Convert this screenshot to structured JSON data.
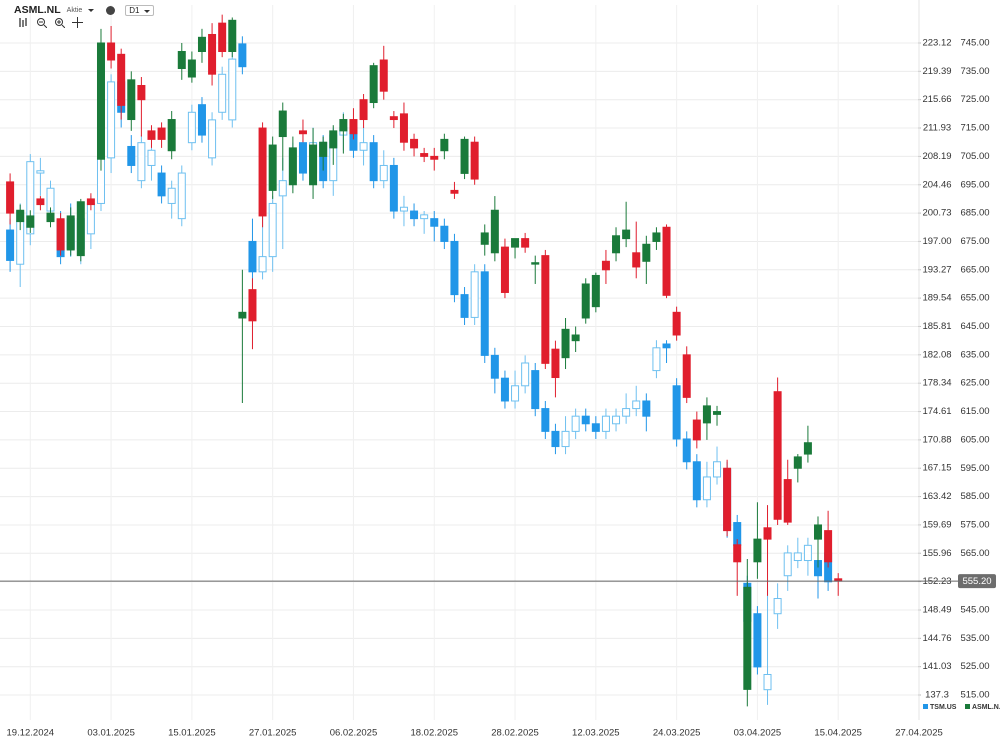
{
  "header": {
    "symbol": "ASML.NL",
    "kind": "Aktie",
    "interval": "D1"
  },
  "chart_data": {
    "type": "candlestick",
    "xlim": [
      -1,
      90
    ],
    "xticks": [
      {
        "value": 2,
        "label": "19.12.2024"
      },
      {
        "value": 10,
        "label": "03.01.2025"
      },
      {
        "value": 18,
        "label": "15.01.2025"
      },
      {
        "value": 26,
        "label": "27.01.2025"
      },
      {
        "value": 34,
        "label": "06.02.2025"
      },
      {
        "value": 42,
        "label": "18.02.2025"
      },
      {
        "value": 50,
        "label": "28.02.2025"
      },
      {
        "value": 58,
        "label": "12.03.2025"
      },
      {
        "value": 66,
        "label": "24.03.2025"
      },
      {
        "value": 74,
        "label": "03.04.2025"
      },
      {
        "value": 82,
        "label": "15.04.2025"
      },
      {
        "value": 90,
        "label": "27.04.2025"
      }
    ],
    "ylim": [
      506.2,
      758.4
    ],
    "yticks": [
      {
        "value": 515,
        "label": "515.00"
      },
      {
        "value": 525,
        "label": "525.00"
      },
      {
        "value": 535,
        "label": "535.00"
      },
      {
        "value": 545,
        "label": "545.00"
      },
      {
        "value": 555,
        "label": "555.00"
      },
      {
        "value": 565,
        "label": "565.00"
      },
      {
        "value": 575,
        "label": "575.00"
      },
      {
        "value": 585,
        "label": "585.00"
      },
      {
        "value": 595,
        "label": "595.00"
      },
      {
        "value": 605,
        "label": "605.00"
      },
      {
        "value": 615,
        "label": "615.00"
      },
      {
        "value": 625,
        "label": "625.00"
      },
      {
        "value": 635,
        "label": "635.00"
      },
      {
        "value": 645,
        "label": "645.00"
      },
      {
        "value": 655,
        "label": "655.00"
      },
      {
        "value": 665,
        "label": "665.00"
      },
      {
        "value": 675,
        "label": "675.00"
      },
      {
        "value": 685,
        "label": "685.00"
      },
      {
        "value": 695,
        "label": "695.00"
      },
      {
        "value": 705,
        "label": "705.00"
      },
      {
        "value": 715,
        "label": "715.00"
      },
      {
        "value": 725,
        "label": "725.00"
      },
      {
        "value": 735,
        "label": "735.00"
      },
      {
        "value": 745,
        "label": "745.00"
      }
    ],
    "y2lim": [
      134.01,
      228.12
    ],
    "y2ticks": [
      137.3,
      141.03,
      144.76,
      148.49,
      152.23,
      155.96,
      159.69,
      163.42,
      167.15,
      170.88,
      174.61,
      178.34,
      182.08,
      185.81,
      189.54,
      193.27,
      {
        "value": 197,
        "label": "197.00"
      },
      200.73,
      204.46,
      208.19,
      211.93,
      215.66,
      219.39,
      223.12
    ],
    "grid": true,
    "last_price": {
      "value": 555.2,
      "label": "555.20"
    },
    "series": [
      {
        "name": "TSM.US",
        "axis": "y2",
        "color": "#2196e8",
        "up_color": "#6ec0f0",
        "down_color": "#2196e8",
        "hollow_up": true,
        "ohlc": [
          [
            198.5,
            200,
            193,
            194.5
          ],
          [
            194,
            202,
            191,
            201
          ],
          [
            198,
            208.5,
            196.5,
            207.5
          ],
          [
            206,
            208,
            203,
            206.3
          ],
          [
            201,
            205,
            199,
            204
          ],
          [
            199.8,
            201,
            194,
            195
          ],
          [
            200,
            202,
            195,
            196
          ],
          [
            196,
            201,
            194,
            200
          ],
          [
            198,
            203,
            196,
            202
          ],
          [
            202,
            209,
            201,
            208
          ],
          [
            208,
            219,
            206,
            218
          ],
          [
            218,
            219,
            212,
            214
          ],
          [
            209.5,
            211,
            206,
            207
          ],
          [
            205,
            211,
            204,
            210
          ],
          [
            207,
            210,
            205,
            209
          ],
          [
            206,
            207,
            202,
            203
          ],
          [
            202,
            205,
            200,
            204
          ],
          [
            200,
            207,
            199,
            206
          ],
          [
            210,
            215,
            209,
            214
          ],
          [
            215,
            216,
            210,
            211
          ],
          [
            208,
            214,
            207,
            213
          ],
          [
            214,
            220,
            213,
            219
          ],
          [
            213,
            222,
            212,
            221
          ],
          [
            223,
            224,
            219,
            220
          ],
          [
            197,
            200,
            191,
            193
          ],
          [
            193,
            201,
            192,
            195
          ],
          [
            195,
            203,
            193,
            202
          ],
          [
            203,
            208,
            196,
            205
          ],
          [
            205,
            210,
            204,
            209
          ],
          [
            210,
            211,
            205,
            206
          ],
          [
            206,
            212,
            205,
            210
          ],
          [
            210,
            211,
            204,
            205
          ],
          [
            205,
            212,
            203,
            211
          ],
          [
            211,
            214,
            209,
            212
          ],
          [
            212,
            213,
            208,
            209
          ],
          [
            209,
            212,
            207,
            210
          ],
          [
            210,
            211,
            204,
            205
          ],
          [
            205,
            209,
            204,
            207
          ],
          [
            207,
            208,
            200,
            201
          ],
          [
            201,
            203,
            199,
            201.5
          ],
          [
            201,
            202,
            199,
            200
          ],
          [
            200,
            201,
            198,
            200.5
          ],
          [
            200,
            201,
            197,
            199
          ],
          [
            199,
            200,
            196,
            197
          ],
          [
            197,
            198,
            189,
            190
          ],
          [
            190,
            191,
            186,
            187
          ],
          [
            187,
            194,
            186,
            193
          ],
          [
            193,
            194,
            181,
            182
          ],
          [
            182,
            183,
            177,
            179
          ],
          [
            179,
            180,
            175,
            176
          ],
          [
            176,
            180,
            175,
            178
          ],
          [
            178,
            182,
            177,
            181
          ],
          [
            180,
            181,
            174,
            175
          ],
          [
            175,
            176,
            171,
            172
          ],
          [
            172,
            173,
            169,
            170
          ],
          [
            170,
            174,
            169,
            172
          ],
          [
            172,
            175,
            171,
            174
          ],
          [
            174,
            175,
            172,
            173
          ],
          [
            173,
            174,
            171,
            172
          ],
          [
            172,
            175,
            171,
            174
          ],
          [
            173,
            175,
            172,
            174
          ],
          [
            174,
            177,
            173,
            175
          ],
          [
            175,
            178,
            174,
            176
          ],
          [
            176,
            177,
            172,
            174
          ],
          [
            180,
            184,
            179,
            183
          ],
          [
            183.5,
            184,
            181,
            183
          ],
          [
            178,
            179,
            170,
            171
          ],
          [
            171,
            172,
            167,
            168
          ],
          [
            168,
            169,
            162,
            163
          ],
          [
            163,
            168,
            162,
            166
          ],
          [
            166,
            170,
            165,
            168
          ],
          [
            167,
            168,
            158,
            159
          ],
          [
            160,
            161,
            156,
            157
          ],
          [
            152,
            153,
            145,
            147
          ],
          [
            148,
            149,
            140,
            141
          ],
          [
            138,
            152,
            136,
            140
          ],
          [
            148,
            152,
            146,
            150
          ],
          [
            153,
            157,
            151,
            156
          ],
          [
            155,
            158,
            154,
            156
          ],
          [
            155,
            158,
            153,
            157
          ],
          [
            155,
            156,
            150,
            153
          ],
          [
            156,
            157,
            151,
            152.2
          ]
        ]
      },
      {
        "name": "ASML.N..",
        "color": "#1a7a3a",
        "up_color": "#1a7a3a",
        "down_color": "#e01e2d",
        "hollow_up": false,
        "ohlc": [
          [
            696,
            699,
            681,
            685
          ],
          [
            682,
            688,
            679,
            686
          ],
          [
            680,
            686,
            678,
            684
          ],
          [
            690,
            691,
            686,
            688
          ],
          [
            682,
            687,
            680,
            685
          ],
          [
            683,
            685,
            670,
            672
          ],
          [
            672,
            687,
            670,
            684
          ],
          [
            670,
            690,
            668,
            689
          ],
          [
            690,
            692,
            686,
            688
          ],
          [
            704,
            750,
            700,
            745
          ],
          [
            745,
            751,
            736,
            739
          ],
          [
            741,
            743,
            718,
            723
          ],
          [
            718,
            735,
            714,
            732
          ],
          [
            730,
            733,
            712,
            725
          ],
          [
            714,
            716,
            708,
            711
          ],
          [
            715,
            717,
            708,
            711
          ],
          [
            707,
            721,
            704,
            718
          ],
          [
            736,
            745,
            732,
            742
          ],
          [
            733,
            742,
            731,
            739
          ],
          [
            742,
            750,
            738,
            747
          ],
          [
            748,
            752,
            730,
            734
          ],
          [
            752,
            755,
            740,
            742
          ],
          [
            742,
            754,
            740,
            753
          ],
          [
            648,
            665,
            618,
            650
          ],
          [
            658,
            662,
            637,
            647
          ],
          [
            715,
            717,
            680,
            684
          ],
          [
            693,
            712,
            690,
            709
          ],
          [
            712,
            724,
            700,
            721
          ],
          [
            695,
            712,
            692,
            708
          ],
          [
            714,
            718,
            710,
            713
          ],
          [
            695,
            715,
            690,
            709
          ],
          [
            705,
            712,
            700,
            710
          ],
          [
            708,
            716,
            702,
            714
          ],
          [
            714,
            720,
            706,
            718
          ],
          [
            718,
            722,
            711,
            713
          ],
          [
            725,
            727,
            715,
            718
          ],
          [
            724,
            738,
            722,
            737
          ],
          [
            739,
            744,
            725,
            728
          ],
          [
            719,
            721,
            715,
            718
          ],
          [
            720,
            724,
            707,
            710
          ],
          [
            711,
            713,
            705,
            708
          ],
          [
            706,
            708,
            703,
            705
          ],
          [
            705,
            708,
            700,
            704
          ],
          [
            707,
            713,
            704,
            711
          ],
          [
            693,
            696,
            690,
            692
          ],
          [
            699,
            712,
            697,
            711
          ],
          [
            710,
            712,
            695,
            697
          ],
          [
            674,
            681,
            670,
            678
          ],
          [
            671,
            691,
            668,
            686
          ],
          [
            673,
            676,
            655,
            657
          ],
          [
            673,
            676,
            669,
            676
          ],
          [
            676,
            678,
            671,
            673
          ],
          [
            667,
            670,
            660,
            667.5
          ],
          [
            670,
            672,
            630,
            632
          ],
          [
            637,
            640,
            620,
            627
          ],
          [
            634,
            648,
            630,
            644
          ],
          [
            640,
            645,
            636,
            642
          ],
          [
            648,
            662,
            646,
            660
          ],
          [
            652,
            664,
            650,
            663
          ],
          [
            668,
            672,
            660,
            665
          ],
          [
            671,
            680,
            668,
            677
          ],
          [
            676,
            689,
            673,
            679
          ],
          [
            671,
            682,
            662,
            666
          ],
          [
            668,
            677,
            660,
            674
          ],
          [
            675,
            680,
            672,
            678
          ],
          [
            680,
            681,
            655,
            656
          ],
          [
            650,
            652,
            640,
            642
          ],
          [
            635,
            638,
            618,
            620
          ],
          [
            612,
            615,
            602,
            605
          ],
          [
            611,
            620,
            605,
            617
          ],
          [
            614,
            617,
            610,
            615
          ],
          [
            595,
            598,
            571,
            573
          ],
          [
            568,
            570,
            550,
            562
          ],
          [
            517,
            563,
            511,
            553
          ],
          [
            562,
            583,
            556,
            570
          ],
          [
            574,
            582,
            550,
            570
          ],
          [
            622,
            627,
            575,
            577
          ],
          [
            591,
            598,
            575,
            576
          ],
          [
            595,
            600,
            590,
            599
          ],
          [
            600,
            610,
            597,
            604
          ],
          [
            570,
            578,
            560,
            575
          ],
          [
            573,
            580,
            560,
            562
          ],
          [
            556,
            558,
            550,
            555.2
          ]
        ]
      }
    ]
  }
}
